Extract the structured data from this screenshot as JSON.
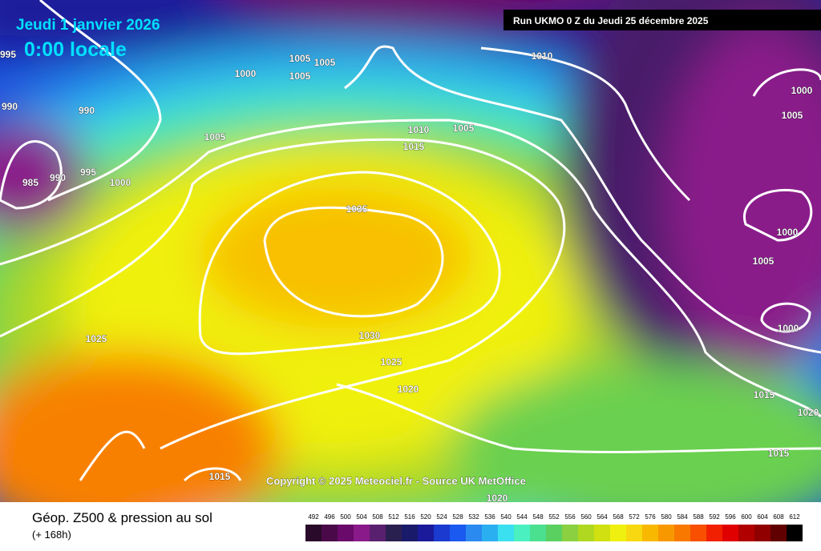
{
  "header": {
    "date": "Jeudi 1 janvier 2026",
    "time": "0:00 locale",
    "run": "Run UKMO 0 Z du Jeudi 25 décembre 2025"
  },
  "copyright": "Copyright © 2025 Meteociel.fr - Source UK MetOffice",
  "isobar_labels": [
    "995",
    "990",
    "985",
    "990",
    "995",
    "1000",
    "990",
    "1000",
    "1005",
    "1005",
    "1005",
    "1005",
    "1010",
    "1010",
    "1005",
    "1015",
    "1035",
    "1030",
    "1025",
    "1020",
    "1025",
    "1015",
    "1020",
    "1000",
    "1005",
    "1000",
    "1005",
    "1000",
    "1015",
    "1020",
    "1015"
  ],
  "legend": {
    "title": "Géop. Z500 & pression au sol",
    "lead": "(+ 168h)",
    "scale": [
      492,
      496,
      500,
      504,
      508,
      512,
      516,
      520,
      524,
      528,
      532,
      536,
      540,
      544,
      548,
      552,
      556,
      560,
      564,
      568,
      572,
      576,
      580,
      584,
      588,
      592,
      596,
      600,
      604,
      608,
      612
    ],
    "colors": [
      "#2a0a2a",
      "#4a0a4a",
      "#6a0a6a",
      "#8a1a8a",
      "#5a2070",
      "#2a2050",
      "#1a1a6a",
      "#1a1a9a",
      "#1a3ad0",
      "#1a5af0",
      "#2a8af0",
      "#2ab0f0",
      "#3ae0f0",
      "#4af0c0",
      "#4ae090",
      "#5ad060",
      "#8ad040",
      "#b0d820",
      "#d0e010",
      "#f0f010",
      "#f8d810",
      "#f8b800",
      "#f89800",
      "#f87800",
      "#f85000",
      "#f02000",
      "#e00000",
      "#b00000",
      "#900000",
      "#600000",
      "#000000"
    ]
  }
}
